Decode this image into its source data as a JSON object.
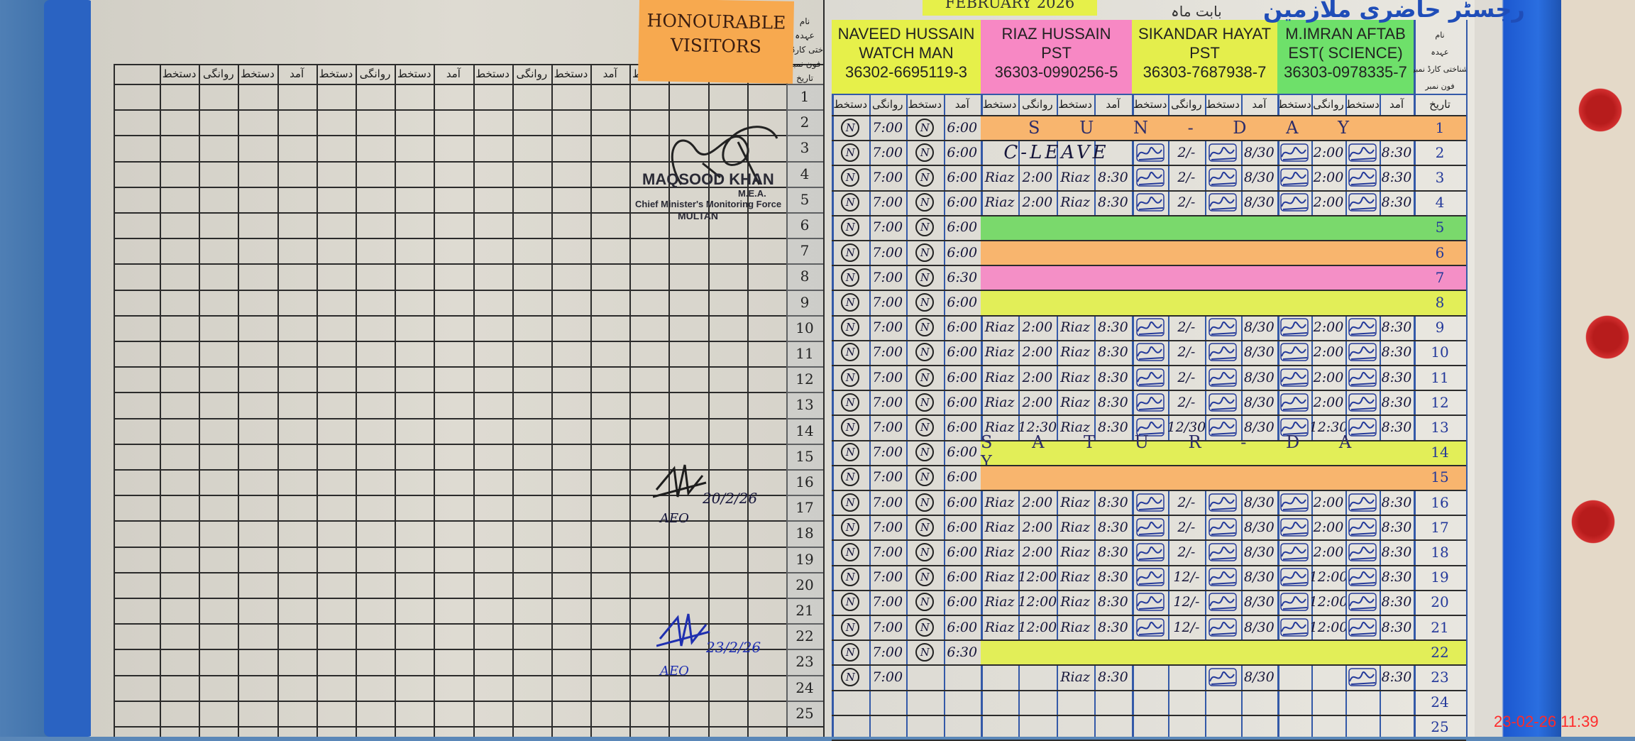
{
  "register": {
    "title_urdu": "رجسٹر حاضری ملازمین",
    "month_label": "بابت ماہ",
    "month": "FEBRUARY 2026"
  },
  "visitors": {
    "title_line1": "HONOURABLE",
    "title_line2": "VISITORS",
    "header_labels": [
      "نام",
      "عہدہ",
      "شناختی کارڈ نمبر",
      "فون نمبر",
      "تاریخ"
    ],
    "columns": [
      "دستخط",
      "روانگی",
      "دستخط",
      "آمد",
      "دستخط",
      "روانگی",
      "دستخط",
      "آمد",
      "دستخط",
      "روانگی",
      "دستخط",
      "آمد",
      "دستخط",
      "روانگی",
      "دستخط",
      "آمد"
    ],
    "stamp": {
      "name": "MAQSOOD KHAN",
      "title": "M.E.A.",
      "org": "Chief Minister's Monitoring Force",
      "city": "MULTAN"
    },
    "entries": [
      {
        "date": "20/2/26",
        "designation": "AEO",
        "ink": "#1d1d1d"
      },
      {
        "date": "23/2/26",
        "designation": "AEO",
        "ink": "#1f2fb0"
      }
    ]
  },
  "staff": [
    {
      "name": "NAVEED HUSSAIN",
      "designation": "WATCH MAN",
      "cnic": "36302-6695119-3",
      "color": "#e6f04a"
    },
    {
      "name": "RIAZ HUSSAIN",
      "designation": "PST",
      "cnic": "36303-0990256-5",
      "color": "#f788c4"
    },
    {
      "name": "SIKANDAR HAYAT",
      "designation": "PST",
      "cnic": "36303-7687938-7",
      "color": "#e4ee4c"
    },
    {
      "name": "M.IMRAN AFTAB",
      "designation": "EST( SCIENCE)",
      "cnic": "36303-0978335-7",
      "color": "#6ee06a"
    }
  ],
  "staff_columns": [
    "دستخط",
    "روانگی",
    "دستخط",
    "آمد"
  ],
  "date_header": "تاریخ",
  "band_colors": {
    "orange": "#f8b56e",
    "green": "#7ad96c",
    "pink": "#f48fc6",
    "yellow": "#e2ee58"
  },
  "rows": [
    {
      "date": "1",
      "cells": [
        [
          "N",
          "7:00",
          "N",
          "6:00"
        ]
      ],
      "band": "orange",
      "note": "S U N - D A Y"
    },
    {
      "date": "2",
      "cells": [
        [
          "N",
          "7:00",
          "N",
          "6:00"
        ],
        "C-LEAVE",
        [
          null,
          "2/-",
          null,
          "8/30"
        ],
        [
          null,
          "2:00",
          null,
          "8:30"
        ]
      ]
    },
    {
      "date": "3",
      "cells": [
        [
          "N",
          "7:00",
          "N",
          "6:00"
        ],
        [
          "Riaz",
          "2:00",
          "Riaz",
          "8:30"
        ],
        [
          null,
          "2/-",
          null,
          "8/30"
        ],
        [
          null,
          "2:00",
          null,
          "8:30"
        ]
      ]
    },
    {
      "date": "4",
      "cells": [
        [
          "N",
          "7:00",
          "N",
          "6:00"
        ],
        [
          "Riaz",
          "2:00",
          "Riaz",
          "8:30"
        ],
        [
          null,
          "2/-",
          null,
          "8/30"
        ],
        [
          null,
          "2:00",
          null,
          "8:30"
        ]
      ]
    },
    {
      "date": "5",
      "cells": [
        [
          "N",
          "7:00",
          "N",
          "6:00"
        ]
      ],
      "band": "green"
    },
    {
      "date": "6",
      "cells": [
        [
          "N",
          "7:00",
          "N",
          "6:00"
        ]
      ],
      "band": "orange"
    },
    {
      "date": "7",
      "cells": [
        [
          "N",
          "7:00",
          "N",
          "6:30"
        ]
      ],
      "band": "pink"
    },
    {
      "date": "8",
      "cells": [
        [
          "N",
          "7:00",
          "N",
          "6:00"
        ]
      ],
      "band": "yellow"
    },
    {
      "date": "9",
      "cells": [
        [
          "N",
          "7:00",
          "N",
          "6:00"
        ],
        [
          "Riaz",
          "2:00",
          "Riaz",
          "8:30"
        ],
        [
          null,
          "2/-",
          null,
          "8/30"
        ],
        [
          null,
          "2:00",
          null,
          "8:30"
        ]
      ]
    },
    {
      "date": "10",
      "cells": [
        [
          "N",
          "7:00",
          "N",
          "6:00"
        ],
        [
          "Riaz",
          "2:00",
          "Riaz",
          "8:30"
        ],
        [
          null,
          "2/-",
          null,
          "8/30"
        ],
        [
          null,
          "2:00",
          null,
          "8:30"
        ]
      ]
    },
    {
      "date": "11",
      "cells": [
        [
          "N",
          "7:00",
          "N",
          "6:00"
        ],
        [
          "Riaz",
          "2:00",
          "Riaz",
          "8:30"
        ],
        [
          null,
          "2/-",
          null,
          "8/30"
        ],
        [
          null,
          "2:00",
          null,
          "8:30"
        ]
      ]
    },
    {
      "date": "12",
      "cells": [
        [
          "N",
          "7:00",
          "N",
          "6:00"
        ],
        [
          "Riaz",
          "2:00",
          "Riaz",
          "8:30"
        ],
        [
          null,
          "2/-",
          null,
          "8/30"
        ],
        [
          null,
          "2:00",
          null,
          "8:30"
        ]
      ]
    },
    {
      "date": "13",
      "cells": [
        [
          "N",
          "7:00",
          "N",
          "6:00"
        ],
        [
          "Riaz",
          "12:30",
          "Riaz",
          "8:30"
        ],
        [
          null,
          "12/30",
          null,
          "8/30"
        ],
        [
          null,
          "12:30",
          null,
          "8:30"
        ]
      ]
    },
    {
      "date": "14",
      "cells": [
        [
          "N",
          "7:00",
          "N",
          "6:00"
        ]
      ],
      "band": "yellow",
      "note": "S A T U R - D A Y"
    },
    {
      "date": "15",
      "cells": [
        [
          "N",
          "7:00",
          "N",
          "6:00"
        ]
      ],
      "band": "orange"
    },
    {
      "date": "16",
      "cells": [
        [
          "N",
          "7:00",
          "N",
          "6:00"
        ],
        [
          "Riaz",
          "2:00",
          "Riaz",
          "8:30"
        ],
        [
          null,
          "2/-",
          null,
          "8/30"
        ],
        [
          null,
          "2:00",
          null,
          "8:30"
        ]
      ]
    },
    {
      "date": "17",
      "cells": [
        [
          "N",
          "7:00",
          "N",
          "6:00"
        ],
        [
          "Riaz",
          "2:00",
          "Riaz",
          "8:30"
        ],
        [
          null,
          "2/-",
          null,
          "8/30"
        ],
        [
          null,
          "2:00",
          null,
          "8:30"
        ]
      ]
    },
    {
      "date": "18",
      "cells": [
        [
          "N",
          "7:00",
          "N",
          "6:00"
        ],
        [
          "Riaz",
          "2:00",
          "Riaz",
          "8:30"
        ],
        [
          null,
          "2/-",
          null,
          "8/30"
        ],
        [
          null,
          "2:00",
          null,
          "8:30"
        ]
      ]
    },
    {
      "date": "19",
      "cells": [
        [
          "N",
          "7:00",
          "N",
          "6:00"
        ],
        [
          "Riaz",
          "12:00",
          "Riaz",
          "8:30"
        ],
        [
          null,
          "12/-",
          null,
          "8/30"
        ],
        [
          null,
          "12:00",
          null,
          "8:30"
        ]
      ]
    },
    {
      "date": "20",
      "cells": [
        [
          "N",
          "7:00",
          "N",
          "6:00"
        ],
        [
          "Riaz",
          "12:00",
          "Riaz",
          "8:30"
        ],
        [
          null,
          "12/-",
          null,
          "8/30"
        ],
        [
          null,
          "12:00",
          null,
          "8:30"
        ]
      ]
    },
    {
      "date": "21",
      "cells": [
        [
          "N",
          "7:00",
          "N",
          "6:00"
        ],
        [
          "Riaz",
          "12:00",
          "Riaz",
          "8:30"
        ],
        [
          null,
          "12/-",
          null,
          "8/30"
        ],
        [
          null,
          "12:00",
          null,
          "8:30"
        ]
      ]
    },
    {
      "date": "22",
      "cells": [
        [
          "N",
          "7:00",
          "N",
          "6:30"
        ]
      ],
      "band": "yellow"
    },
    {
      "date": "23",
      "cells": [
        [
          "N",
          "7:00",
          "",
          ""
        ],
        [
          "",
          "",
          "Riaz",
          "8:30"
        ],
        [
          "",
          "",
          null,
          "8/30"
        ],
        [
          "",
          "",
          null,
          "8:30"
        ]
      ]
    },
    {
      "date": "24",
      "cells": []
    },
    {
      "date": "25",
      "cells": []
    }
  ],
  "camera_timestamp": "23-02-26 11:39"
}
